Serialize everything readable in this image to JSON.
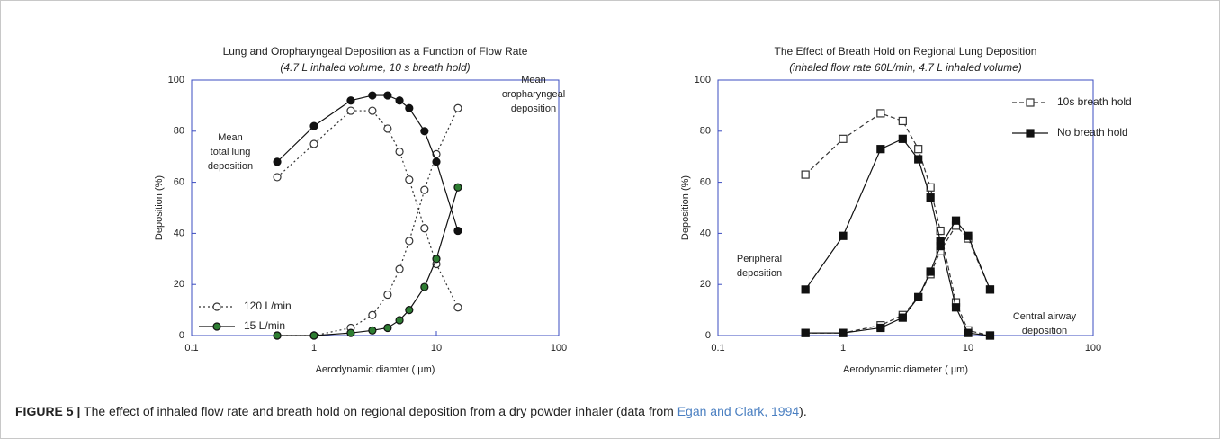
{
  "chart_data": [
    {
      "type": "line",
      "title": "Lung  and Oropharyngeal Deposition as a Function of Flow Rate",
      "subtitle": "(4.7 L inhaled volume, 10 s breath hold)",
      "xlabel": "Aerodynamic diamter ( µm)",
      "ylabel": "Deposition (%)",
      "xscale": "log",
      "xlim": [
        0.1,
        100
      ],
      "xticks": [
        0.1,
        1,
        10,
        100
      ],
      "ylim": [
        0,
        100
      ],
      "yticks": [
        0,
        20,
        40,
        60,
        80,
        100
      ],
      "axis_color": "#3b4cc0",
      "legend": "lower left",
      "x": [
        0.5,
        1,
        2,
        3,
        4,
        5,
        6,
        8,
        10,
        15
      ],
      "series": [
        {
          "name": "120 L/min",
          "color": "#333333",
          "marker": "circle",
          "fill": "#ffffff",
          "dash": "dotted",
          "values": [
            62,
            75,
            88,
            88,
            81,
            72,
            61,
            42,
            28,
            11
          ]
        },
        {
          "color": "#333333",
          "marker": "circle",
          "fill": "#ffffff",
          "dash": "dotted",
          "values": [
            0,
            0,
            3,
            8,
            16,
            26,
            37,
            57,
            71,
            89
          ]
        },
        {
          "color": "#111111",
          "marker": "circle",
          "fill": "#111111",
          "dash": "solid",
          "values": [
            68,
            82,
            92,
            94,
            94,
            92,
            89,
            80,
            68,
            41
          ]
        },
        {
          "name": "15 L/min",
          "color": "#111111",
          "marker": "circle",
          "fill": "#2e7d32",
          "dash": "solid",
          "values": [
            0,
            0,
            1,
            2,
            3,
            6,
            10,
            19,
            30,
            58
          ]
        }
      ],
      "annotations": [
        {
          "lines": [
            "Mean",
            "total lung",
            "deposition"
          ]
        },
        {
          "lines": [
            "Mean",
            "oropharyngeal",
            "deposition"
          ]
        }
      ]
    },
    {
      "type": "line",
      "title": "The Effect of Breath Hold on Regional Lung Deposition",
      "subtitle": "(inhaled flow rate 60L/min, 4.7 L inhaled volume)",
      "xlabel": "Aerodynamic diameter ( µm)",
      "ylabel": "Deposition (%)",
      "xscale": "log",
      "xlim": [
        0.1,
        100
      ],
      "xticks": [
        0.1,
        1,
        10,
        100
      ],
      "ylim": [
        0,
        100
      ],
      "yticks": [
        0,
        20,
        40,
        60,
        80,
        100
      ],
      "axis_color": "#3b4cc0",
      "legend": "upper right",
      "x": [
        0.5,
        1,
        2,
        3,
        4,
        5,
        6,
        8,
        10,
        15
      ],
      "series": [
        {
          "name": "10s breath hold",
          "color": "#333333",
          "marker": "square",
          "fill": "#ffffff",
          "dash": "dashed",
          "values": [
            63,
            77,
            87,
            84,
            73,
            58,
            41,
            13,
            2,
            0
          ]
        },
        {
          "name": "No breath hold",
          "color": "#111111",
          "marker": "square",
          "fill": "#111111",
          "dash": "solid",
          "values": [
            18,
            39,
            73,
            77,
            69,
            54,
            37,
            11,
            1,
            0
          ]
        },
        {
          "color": "#333333",
          "marker": "square",
          "fill": "#ffffff",
          "dash": "dashed",
          "values": [
            1,
            1,
            4,
            8,
            15,
            24,
            33,
            43,
            38,
            18
          ]
        },
        {
          "color": "#111111",
          "marker": "square",
          "fill": "#111111",
          "dash": "solid",
          "values": [
            1,
            1,
            3,
            7,
            15,
            25,
            35,
            45,
            39,
            18
          ]
        }
      ],
      "annotations": [
        {
          "lines": [
            "Peripheral",
            "deposition"
          ]
        },
        {
          "lines": [
            "Central airway",
            "deposition"
          ]
        }
      ]
    }
  ],
  "caption": {
    "label": "FIGURE 5 |",
    "text_before": "The effect of inhaled flow rate and breath hold on regional deposition from a dry powder inhaler (data from ",
    "link": "Egan and Clark, 1994",
    "text_after": ")."
  }
}
